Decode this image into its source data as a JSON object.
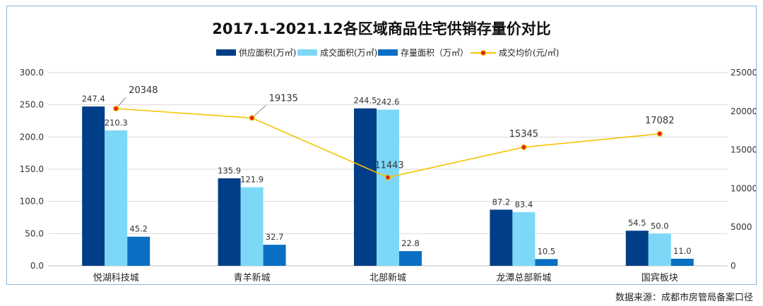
{
  "chart_data": {
    "type": "bar",
    "title": "2017.1-2021.12各区域商品住宅供销存量价对比",
    "categories": [
      "悦湖科技城",
      "青羊新城",
      "北部新城",
      "龙潭总部新城",
      "国宾板块"
    ],
    "series": [
      {
        "name": "供应面积(万㎡)",
        "type": "bar",
        "axis": "left",
        "color": "#003f88",
        "values": [
          247.4,
          135.9,
          244.5,
          87.2,
          54.5
        ]
      },
      {
        "name": "成交面积(万㎡)",
        "type": "bar",
        "axis": "left",
        "color": "#7dd8f8",
        "values": [
          210.3,
          121.9,
          242.6,
          83.4,
          50.0
        ]
      },
      {
        "name": "存量面积（万㎡）",
        "type": "bar",
        "axis": "left",
        "color": "#0a6fc2",
        "values": [
          45.2,
          32.7,
          22.8,
          10.5,
          11.0
        ]
      },
      {
        "name": "成交均价(元/㎡)",
        "type": "line",
        "axis": "right",
        "color": "#f5c400",
        "marker_color": "#e02020",
        "values": [
          20348,
          19135,
          11443,
          15345,
          17082
        ]
      }
    ],
    "y_left": {
      "min": 0,
      "max": 300,
      "ticks": [
        "0.0",
        "50.0",
        "100.0",
        "150.0",
        "200.0",
        "250.0",
        "300.0"
      ]
    },
    "y_right": {
      "min": 0,
      "max": 25000,
      "ticks": [
        "0",
        "5000",
        "10000",
        "15000",
        "20000",
        "25000"
      ]
    },
    "grid": true,
    "legend_position": "top"
  },
  "source_note": "数据来源：成都市房管局备案口径"
}
